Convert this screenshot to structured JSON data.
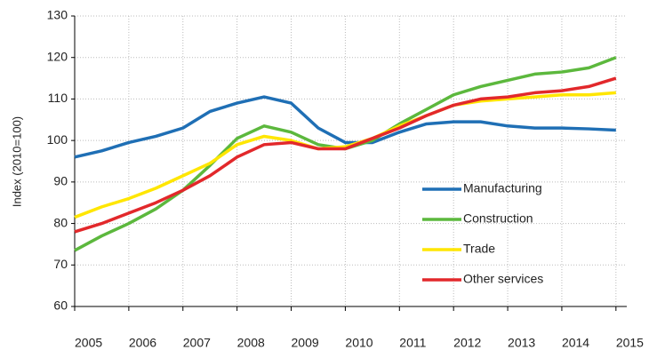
{
  "chart_data": {
    "type": "line",
    "y_label": "Index (2010=100)",
    "x": [
      2005,
      2005.5,
      2006,
      2006.5,
      2007,
      2007.5,
      2008,
      2008.5,
      2009,
      2009.5,
      2010,
      2010.5,
      2011,
      2011.5,
      2012,
      2012.5,
      2013,
      2013.5,
      2014,
      2014.5,
      2015
    ],
    "series": [
      {
        "name": "Manufacturing",
        "color": "#1f6fb5",
        "values": [
          96,
          97.5,
          99.5,
          101,
          103,
          107,
          109,
          110.5,
          109,
          103,
          99.5,
          99.5,
          102,
          104,
          104.5,
          104.5,
          103.5,
          103,
          103,
          102.8,
          102.5
        ]
      },
      {
        "name": "Construction",
        "color": "#5cb83d",
        "values": [
          73.5,
          77,
          80,
          83.5,
          88,
          94,
          100.5,
          103.5,
          102,
          99,
          98,
          100,
          104,
          107.5,
          111,
          113,
          114.5,
          116,
          116.5,
          117.5,
          120
        ]
      },
      {
        "name": "Trade",
        "color": "#ffe600",
        "values": [
          81.5,
          84,
          86,
          88.5,
          91.5,
          94.5,
          99,
          101,
          100,
          98,
          98.5,
          100.5,
          103.5,
          106,
          108.5,
          109.5,
          110,
          110.5,
          111,
          111,
          111.5
        ]
      },
      {
        "name": "Other services",
        "color": "#e2282b",
        "values": [
          78,
          80,
          82.5,
          85,
          88,
          91.5,
          96,
          99,
          99.5,
          98,
          98,
          100.5,
          103,
          106,
          108.5,
          110,
          110.5,
          111.5,
          112,
          113,
          115
        ]
      }
    ],
    "xlim": [
      2005,
      2015.2
    ],
    "xticks": [
      2005,
      2006,
      2007,
      2008,
      2009,
      2010,
      2011,
      2012,
      2013,
      2014,
      2015
    ],
    "ylim": [
      60,
      130
    ],
    "yticks": [
      60,
      70,
      80,
      90,
      100,
      110,
      120,
      130
    ],
    "grid": true,
    "legend": "lower right"
  }
}
